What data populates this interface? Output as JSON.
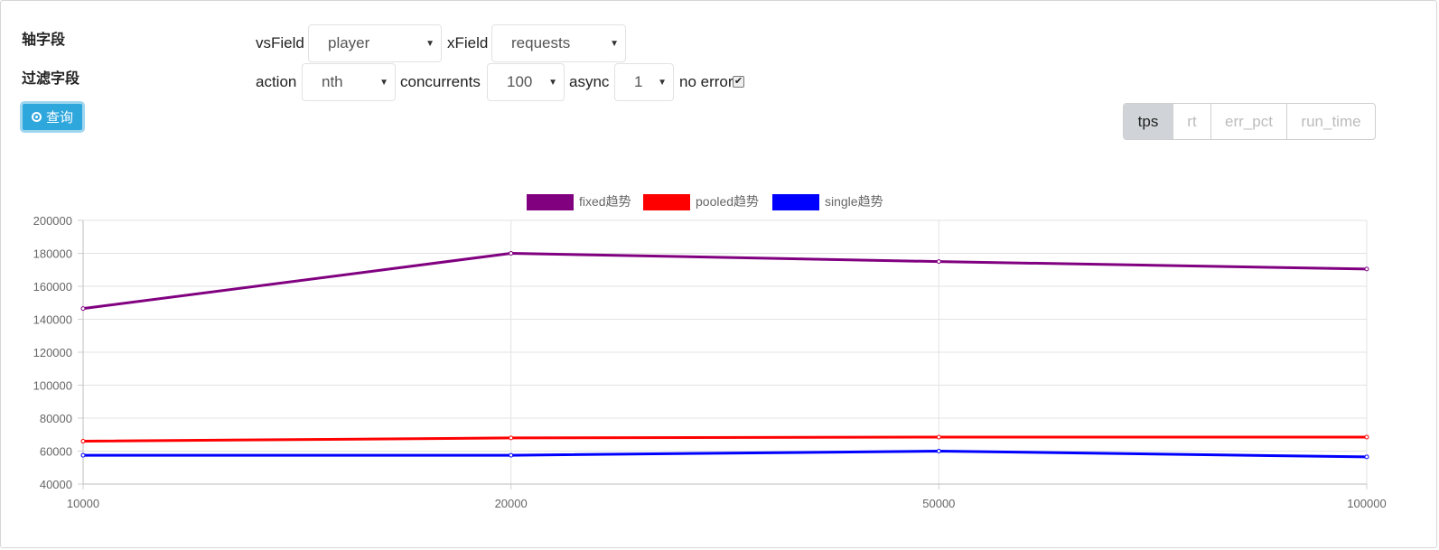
{
  "labels": {
    "axis_field": "轴字段",
    "filter_field": "过滤字段"
  },
  "query_button": {
    "label": "查询",
    "icon": "radio-circle-icon"
  },
  "controls": {
    "vsfield_label": "vsField",
    "vsfield_value": "player",
    "xfield_label": "xField",
    "xfield_value": "requests",
    "action_label": "action",
    "action_value": "nth",
    "concurrents_label": "concurrents",
    "concurrents_value": "100",
    "async_label": "async",
    "async_value": "1",
    "noerror_label": "no error",
    "noerror_checked": true
  },
  "metric_tabs": [
    {
      "label": "tps",
      "active": true
    },
    {
      "label": "rt",
      "active": false
    },
    {
      "label": "err_pct",
      "active": false
    },
    {
      "label": "run_time",
      "active": false
    }
  ],
  "chart_data": {
    "type": "line",
    "categories": [
      "10000",
      "20000",
      "50000",
      "100000"
    ],
    "series": [
      {
        "name": "fixed趋势",
        "color": "#800080",
        "values": [
          146500,
          180000,
          175000,
          170500
        ]
      },
      {
        "name": "pooled趋势",
        "color": "#ff0000",
        "values": [
          66000,
          68000,
          68500,
          68500
        ]
      },
      {
        "name": "single趋势",
        "color": "#0000ff",
        "values": [
          57500,
          57500,
          60000,
          56500
        ]
      }
    ],
    "yticks": [
      "200000",
      "180000",
      "160000",
      "140000",
      "120000",
      "100000",
      "80000",
      "60000",
      "40000"
    ],
    "ylim": [
      40000,
      200000
    ],
    "grid": true,
    "legend": "top-center"
  }
}
